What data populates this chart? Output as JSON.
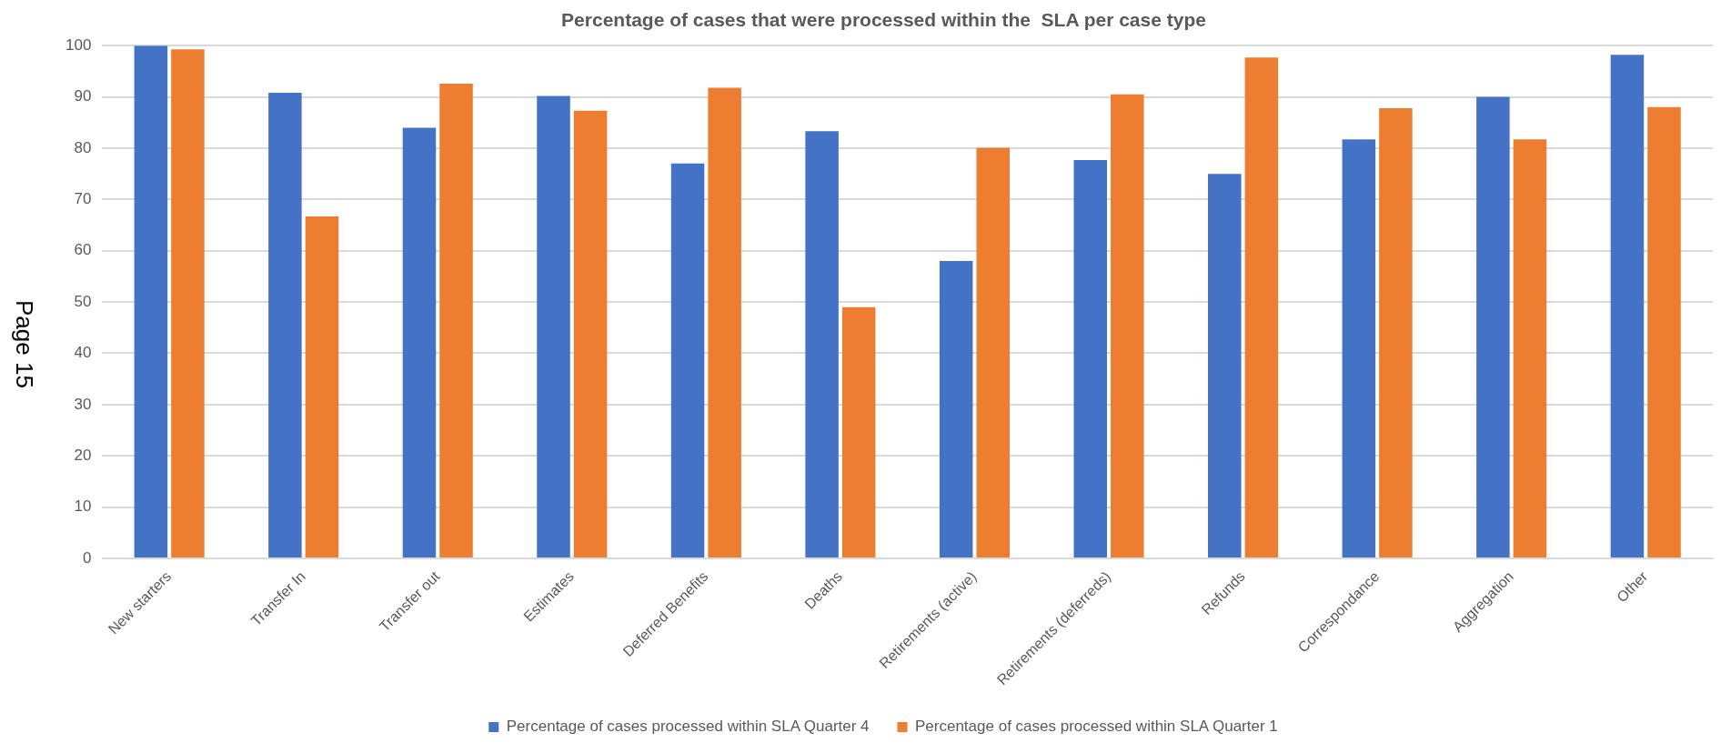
{
  "chart_data": {
    "type": "bar",
    "title": "Percentage of cases that were processed within the  SLA per case type",
    "categories": [
      "New starters",
      "Transfer In",
      "Transfer out",
      "Estimates",
      "Deferred Benefits",
      "Deaths",
      "Retirements (active)",
      "Retirements (deferreds)",
      "Refunds",
      "Correspondance",
      "Aggregation",
      "Other"
    ],
    "series": [
      {
        "name": "Percentage of cases processed within SLA Quarter 4",
        "color": "#4472c4",
        "values": [
          100,
          90.8,
          84,
          90.2,
          77,
          83.3,
          58,
          77.7,
          75,
          81.7,
          90,
          98.2
        ]
      },
      {
        "name": "Percentage of cases processed within SLA Quarter 1",
        "color": "#ed7d31",
        "values": [
          99.3,
          66.7,
          92.6,
          87.3,
          91.8,
          49,
          80.1,
          90.5,
          97.7,
          87.8,
          81.7,
          88
        ]
      }
    ],
    "ylim": [
      0,
      100
    ],
    "yticks": [
      0,
      10,
      20,
      30,
      40,
      50,
      60,
      70,
      80,
      90,
      100
    ],
    "grid": "y",
    "legend": "bottom",
    "annotations": [
      "Page 15"
    ]
  }
}
